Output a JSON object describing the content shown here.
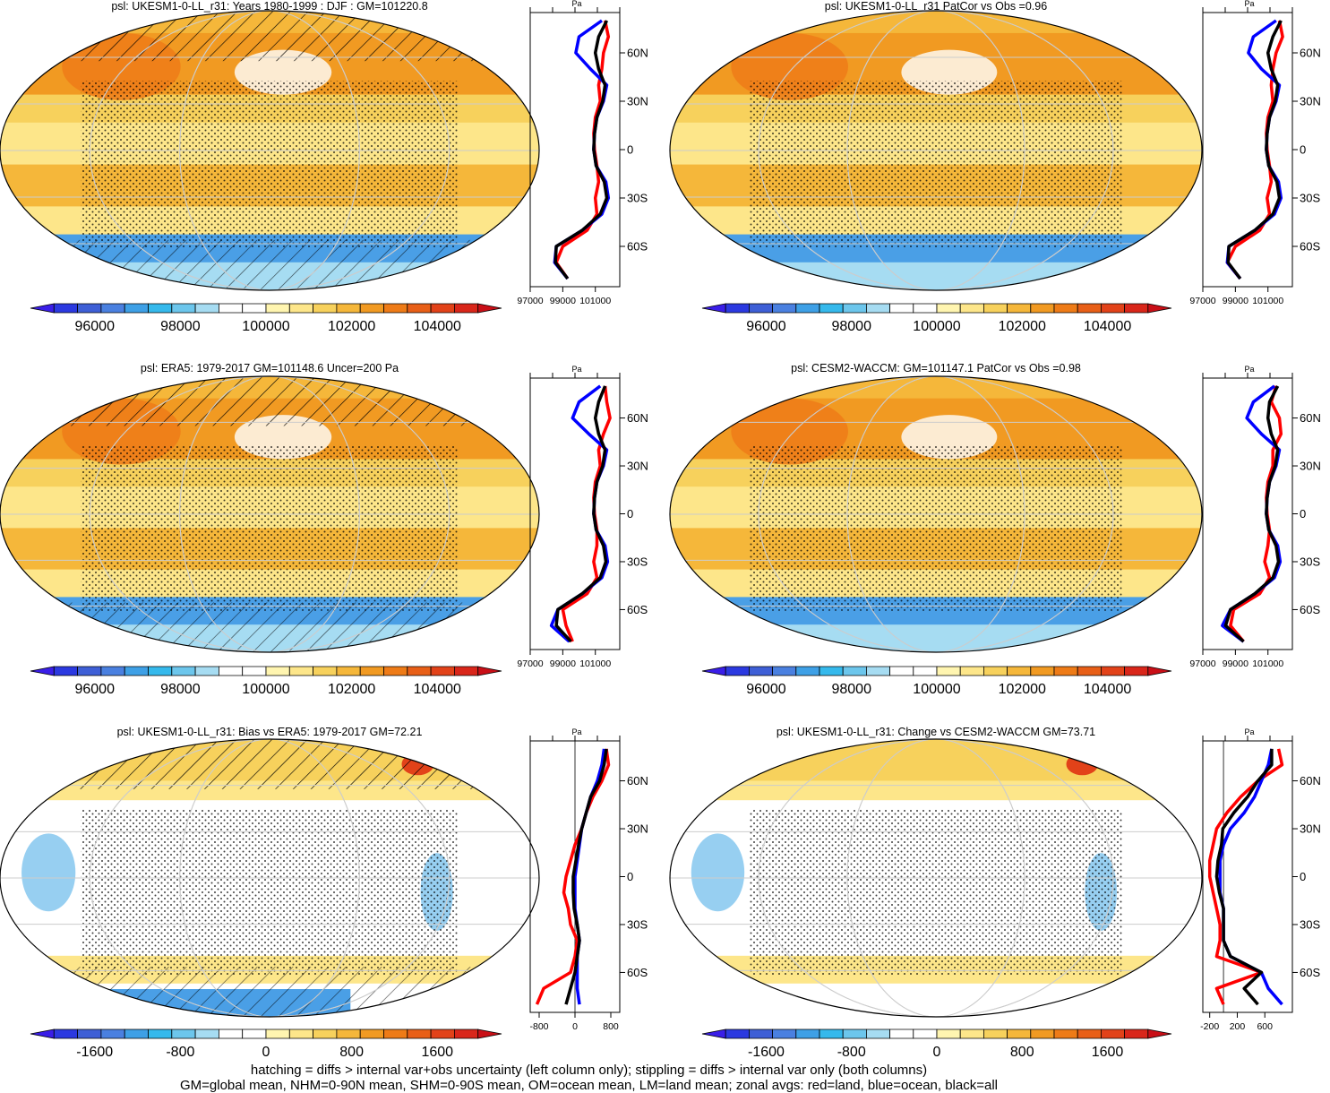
{
  "footnote": {
    "line1": "hatching = diffs > internal var+obs uncertainty (left column only); stippling = diffs > internal var only (both columns)",
    "line2": "GM=global mean, NHM=0-90N mean, SHM=0-90S mean, OM=ocean mean, LM=land mean; zonal avgs: red=land, blue=ocean, black=all"
  },
  "colors": {
    "land": "#ff0000",
    "ocean": "#0000ff",
    "all": "#000000",
    "ocean_fill": "#f7c64a",
    "gridline": "#cccccc"
  },
  "lat_ticks": [
    "60N",
    "30N",
    "0",
    "30S",
    "60S"
  ],
  "zonal_axis_label": "Pa",
  "chart_data": [
    {
      "type": "heatmap",
      "title": "psl: UKESM1-0-LL_r31: Years 1980-1999 : DJF : GM=101220.8",
      "colorbar": {
        "min": 94500,
        "max": 105500,
        "ticks": [
          "96000",
          "98000",
          "100000",
          "102000",
          "104000"
        ],
        "tick_values": [
          96000,
          98000,
          100000,
          102000,
          104000
        ],
        "palette": "abs"
      },
      "zonal": {
        "xlim": [
          97000,
          102500
        ],
        "ticks": [
          "97000",
          "99000",
          "101000"
        ],
        "tick_values": [
          97000,
          99000,
          101000
        ],
        "lat": [
          80,
          70,
          60,
          50,
          40,
          30,
          20,
          10,
          0,
          -10,
          -20,
          -30,
          -40,
          -50,
          -60,
          -70,
          -80
        ],
        "land": [
          101600,
          101800,
          101500,
          101400,
          101200,
          101300,
          101000,
          100900,
          100950,
          101100,
          101200,
          101000,
          101100,
          100500,
          99000,
          98600,
          99300
        ],
        "ocean": [
          101400,
          100000,
          99800,
          100700,
          101700,
          101500,
          101100,
          100950,
          100900,
          101050,
          101650,
          101800,
          101400,
          100200,
          98600,
          98500,
          99300
        ],
        "all": [
          101700,
          101200,
          101000,
          101200,
          101600,
          101450,
          101100,
          100950,
          100900,
          101050,
          101550,
          101700,
          101300,
          100200,
          98600,
          98550,
          99300
        ]
      }
    },
    {
      "type": "heatmap",
      "title": "psl: UKESM1-0-LL_r31 PatCor vs Obs =0.96",
      "colorbar": {
        "min": 94500,
        "max": 105500,
        "ticks": [
          "96000",
          "98000",
          "100000",
          "102000",
          "104000"
        ],
        "tick_values": [
          96000,
          98000,
          100000,
          102000,
          104000
        ],
        "palette": "abs"
      },
      "zonal": {
        "xlim": [
          97000,
          102500
        ],
        "ticks": [
          "97000",
          "99000",
          "101000"
        ],
        "tick_values": [
          97000,
          99000,
          101000
        ],
        "lat": [
          80,
          70,
          60,
          50,
          40,
          30,
          20,
          10,
          0,
          -10,
          -20,
          -30,
          -40,
          -50,
          -60,
          -70,
          -80
        ],
        "land": [
          101700,
          101900,
          101500,
          101300,
          101200,
          101300,
          101000,
          100900,
          100950,
          101100,
          101200,
          100950,
          101100,
          100500,
          99000,
          98500,
          99300
        ],
        "ocean": [
          101500,
          100100,
          99800,
          100600,
          101700,
          101500,
          101100,
          100950,
          100900,
          101050,
          101650,
          101800,
          101400,
          100200,
          98600,
          98500,
          99300
        ],
        "all": [
          101800,
          101300,
          101000,
          101200,
          101600,
          101450,
          101100,
          100950,
          100900,
          101050,
          101550,
          101700,
          101300,
          100200,
          98600,
          98550,
          99300
        ]
      }
    },
    {
      "type": "heatmap",
      "title": "psl: ERA5: 1979-2017 GM=101148.6 Uncer=200 Pa",
      "colorbar": {
        "min": 94500,
        "max": 105500,
        "ticks": [
          "96000",
          "98000",
          "100000",
          "102000",
          "104000"
        ],
        "tick_values": [
          96000,
          98000,
          100000,
          102000,
          104000
        ],
        "palette": "abs"
      },
      "zonal": {
        "xlim": [
          97000,
          102500
        ],
        "ticks": [
          "97000",
          "99000",
          "101000"
        ],
        "tick_values": [
          97000,
          99000,
          101000
        ],
        "lat": [
          80,
          70,
          60,
          50,
          40,
          30,
          20,
          10,
          0,
          -10,
          -20,
          -30,
          -40,
          -50,
          -60,
          -70,
          -80
        ],
        "land": [
          101600,
          101700,
          101900,
          101500,
          101200,
          101300,
          101000,
          100900,
          100950,
          101100,
          101100,
          100900,
          101100,
          100500,
          99000,
          99200,
          99600
        ],
        "ocean": [
          101300,
          100000,
          99600,
          100600,
          101700,
          101500,
          101100,
          100950,
          100900,
          101050,
          101600,
          101750,
          101400,
          100200,
          98700,
          98300,
          99400
        ],
        "all": [
          101600,
          101200,
          101000,
          101200,
          101600,
          101450,
          101100,
          100950,
          100900,
          101050,
          101500,
          101650,
          101300,
          100200,
          98700,
          98600,
          99500
        ]
      }
    },
    {
      "type": "heatmap",
      "title": "psl: CESM2-WACCM: GM=101147.1 PatCor vs Obs =0.98",
      "colorbar": {
        "min": 94500,
        "max": 105500,
        "ticks": [
          "96000",
          "98000",
          "100000",
          "102000",
          "104000"
        ],
        "tick_values": [
          96000,
          98000,
          100000,
          102000,
          104000
        ],
        "palette": "abs"
      },
      "zonal": {
        "xlim": [
          97000,
          102500
        ],
        "ticks": [
          "97000",
          "99000",
          "101000"
        ],
        "tick_values": [
          97000,
          99000,
          101000
        ],
        "lat": [
          80,
          70,
          60,
          50,
          40,
          30,
          20,
          10,
          0,
          -10,
          -20,
          -30,
          -40,
          -50,
          -60,
          -70,
          -80
        ],
        "land": [
          101500,
          101200,
          101700,
          101800,
          101300,
          101300,
          101000,
          100900,
          100950,
          101100,
          101000,
          100800,
          101100,
          100500,
          98900,
          98700,
          99500
        ],
        "ocean": [
          101400,
          100100,
          99700,
          100600,
          101700,
          101500,
          101100,
          100950,
          100900,
          101050,
          101600,
          101750,
          101400,
          100200,
          98700,
          98200,
          99500
        ],
        "all": [
          101600,
          101100,
          101000,
          101200,
          101600,
          101450,
          101100,
          100950,
          100900,
          101050,
          101500,
          101650,
          101300,
          100200,
          98700,
          98400,
          99500
        ]
      }
    },
    {
      "type": "heatmap",
      "title": "psl: UKESM1-0-LL_r31: Bias vs ERA5: 1979-2017 GM=72.21",
      "colorbar": {
        "min": -2200,
        "max": 2200,
        "ticks": [
          "-1600",
          "-800",
          "0",
          "800",
          "1600"
        ],
        "tick_values": [
          -1600,
          -800,
          0,
          800,
          1600
        ],
        "palette": "diff"
      },
      "zonal": {
        "xlim": [
          -1000,
          1000
        ],
        "ticks": [
          "-800",
          "0",
          "800"
        ],
        "tick_values": [
          -800,
          0,
          800
        ],
        "lat": [
          80,
          70,
          60,
          50,
          40,
          30,
          20,
          10,
          0,
          -10,
          -20,
          -30,
          -40,
          -50,
          -60,
          -70,
          -80
        ],
        "land": [
          700,
          750,
          600,
          400,
          250,
          150,
          0,
          -100,
          -200,
          -250,
          -150,
          -100,
          50,
          0,
          -100,
          -700,
          -850
        ],
        "ocean": [
          650,
          600,
          500,
          350,
          250,
          150,
          100,
          50,
          0,
          0,
          0,
          50,
          100,
          50,
          50,
          50,
          100
        ],
        "all": [
          700,
          650,
          550,
          350,
          250,
          150,
          80,
          20,
          -40,
          -40,
          -20,
          50,
          100,
          50,
          0,
          -100,
          -200
        ]
      }
    },
    {
      "type": "heatmap",
      "title": "psl: UKESM1-0-LL_r31: Change vs CESM2-WACCM GM=73.71",
      "colorbar": {
        "min": -2200,
        "max": 2200,
        "ticks": [
          "-1600",
          "-800",
          "0",
          "800",
          "1600"
        ],
        "tick_values": [
          -1600,
          -800,
          0,
          800,
          1600
        ],
        "palette": "diff"
      },
      "zonal": {
        "xlim": [
          -300,
          1000
        ],
        "ticks": [
          "-200",
          "200",
          "600"
        ],
        "tick_values": [
          -200,
          200,
          600
        ],
        "lat": [
          80,
          70,
          60,
          50,
          40,
          30,
          20,
          10,
          0,
          -10,
          -20,
          -30,
          -40,
          -50,
          -60,
          -70,
          -80
        ],
        "land": [
          800,
          850,
          500,
          250,
          50,
          -100,
          -150,
          -200,
          -200,
          -150,
          -100,
          -50,
          -50,
          -100,
          550,
          -100,
          0
        ],
        "ocean": [
          700,
          650,
          550,
          450,
          300,
          100,
          0,
          -50,
          -50,
          -50,
          0,
          0,
          0,
          100,
          550,
          650,
          850
        ],
        "all": [
          700,
          700,
          500,
          350,
          150,
          -10,
          -30,
          -80,
          -100,
          -60,
          0,
          0,
          0,
          100,
          550,
          300,
          500
        ]
      }
    }
  ]
}
